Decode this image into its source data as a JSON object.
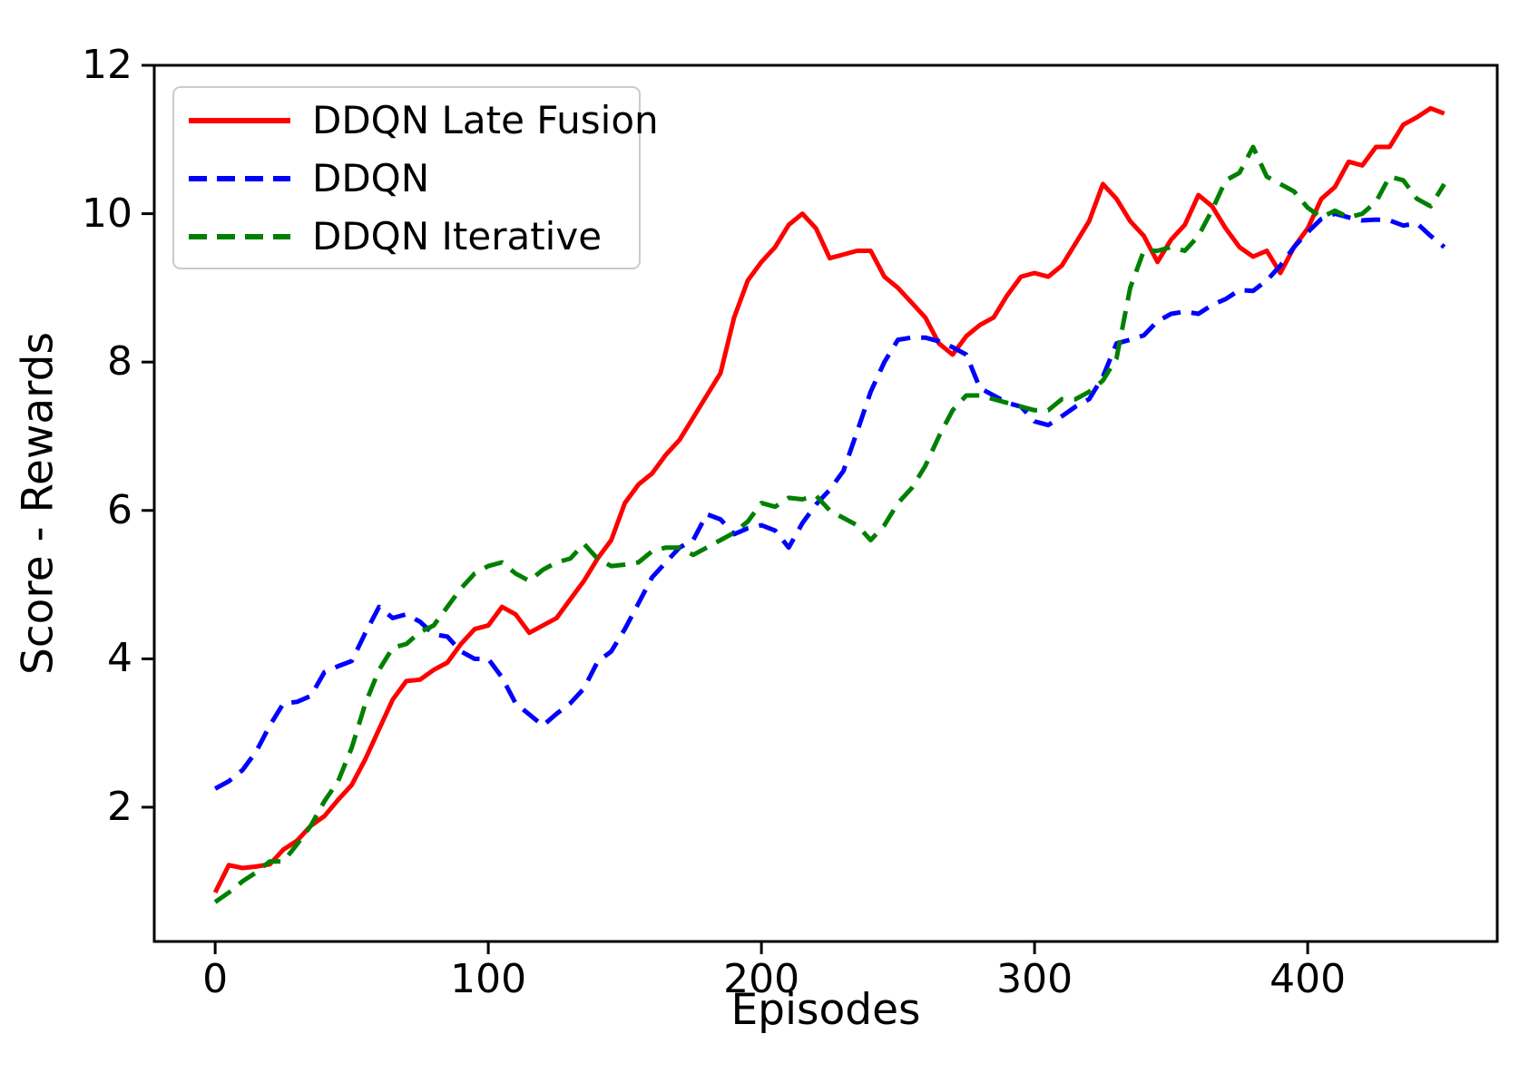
{
  "figure": {
    "background": "#ffffff"
  },
  "axes": {
    "xlabel": "Episodes",
    "ylabel": "Score - Rewards",
    "x_ticks": [
      0,
      100,
      200,
      300,
      400
    ],
    "y_ticks": [
      2,
      4,
      6,
      8,
      10,
      12
    ],
    "spine_color": "#000000"
  },
  "legend": {
    "position": "upper left",
    "items": [
      {
        "label": "DDQN Late Fusion",
        "color": "#ff0000",
        "style": "solid"
      },
      {
        "label": "DDQN",
        "color": "#0000ff",
        "style": "dashed"
      },
      {
        "label": "DDQN Iterative",
        "color": "#008000",
        "style": "dashed"
      }
    ]
  },
  "chart_data": {
    "type": "line",
    "title": "",
    "xlabel": "Episodes",
    "ylabel": "Score - Rewards",
    "grid": false,
    "legend_position": "upper left",
    "xlim": [
      -22.3,
      469.4
    ],
    "ylim": [
      0.19,
      12.0
    ],
    "x": [
      0,
      5,
      10,
      15,
      20,
      25,
      30,
      35,
      40,
      45,
      50,
      55,
      60,
      65,
      70,
      75,
      80,
      85,
      90,
      95,
      100,
      105,
      110,
      115,
      120,
      125,
      130,
      135,
      140,
      145,
      150,
      155,
      160,
      165,
      170,
      175,
      180,
      185,
      190,
      195,
      200,
      205,
      210,
      215,
      220,
      225,
      230,
      235,
      240,
      245,
      250,
      255,
      260,
      265,
      270,
      275,
      280,
      285,
      290,
      295,
      300,
      305,
      310,
      315,
      320,
      325,
      330,
      335,
      340,
      345,
      350,
      355,
      360,
      365,
      370,
      375,
      380,
      385,
      390,
      395,
      400,
      405,
      410,
      415,
      420,
      425,
      430,
      435,
      440,
      445,
      450
    ],
    "series": [
      {
        "name": "DDQN Late Fusion",
        "color": "#ff0000",
        "style": "solid",
        "values": [
          0.85,
          1.22,
          1.18,
          1.2,
          1.23,
          1.43,
          1.55,
          1.75,
          1.88,
          2.1,
          2.3,
          2.65,
          3.05,
          3.45,
          3.7,
          3.72,
          3.85,
          3.95,
          4.2,
          4.4,
          4.45,
          4.7,
          4.6,
          4.35,
          4.45,
          4.55,
          4.8,
          5.05,
          5.35,
          5.6,
          6.1,
          6.35,
          6.5,
          6.75,
          6.95,
          7.25,
          7.55,
          7.85,
          8.6,
          9.1,
          9.35,
          9.55,
          9.85,
          10.0,
          9.8,
          9.4,
          9.45,
          9.5,
          9.5,
          9.15,
          9.0,
          8.8,
          8.6,
          8.25,
          8.1,
          8.35,
          8.5,
          8.6,
          8.9,
          9.15,
          9.2,
          9.15,
          9.3,
          9.6,
          9.9,
          10.4,
          10.2,
          9.9,
          9.7,
          9.35,
          9.65,
          9.85,
          10.25,
          10.1,
          9.8,
          9.55,
          9.42,
          9.5,
          9.2,
          9.55,
          9.8,
          10.2,
          10.36,
          10.7,
          10.65,
          10.9,
          10.9,
          11.2,
          11.3,
          11.42,
          11.35
        ]
      },
      {
        "name": "DDQN",
        "color": "#0000ff",
        "style": "dashed",
        "values": [
          2.25,
          2.35,
          2.5,
          2.75,
          3.1,
          3.4,
          3.42,
          3.5,
          3.82,
          3.9,
          3.97,
          4.35,
          4.7,
          4.55,
          4.6,
          4.5,
          4.33,
          4.3,
          4.1,
          4.0,
          4.0,
          3.75,
          3.4,
          3.25,
          3.1,
          3.26,
          3.4,
          3.6,
          3.96,
          4.1,
          4.4,
          4.75,
          5.1,
          5.3,
          5.5,
          5.6,
          5.95,
          5.88,
          5.68,
          5.76,
          5.8,
          5.73,
          5.5,
          5.83,
          6.08,
          6.28,
          6.53,
          7.06,
          7.6,
          8.0,
          8.3,
          8.33,
          8.33,
          8.28,
          8.2,
          8.1,
          7.65,
          7.55,
          7.45,
          7.4,
          7.2,
          7.15,
          7.27,
          7.4,
          7.5,
          7.8,
          8.25,
          8.3,
          8.36,
          8.55,
          8.65,
          8.68,
          8.65,
          8.77,
          8.85,
          8.97,
          8.96,
          9.1,
          9.3,
          9.55,
          9.75,
          9.93,
          10.0,
          9.95,
          9.91,
          9.92,
          9.91,
          9.84,
          9.87,
          9.7,
          9.55
        ]
      },
      {
        "name": "DDQN Iterative",
        "color": "#008000",
        "style": "dashed",
        "values": [
          0.72,
          0.85,
          1.0,
          1.12,
          1.27,
          1.27,
          1.5,
          1.75,
          2.08,
          2.35,
          2.8,
          3.4,
          3.85,
          4.15,
          4.2,
          4.36,
          4.45,
          4.7,
          4.95,
          5.15,
          5.25,
          5.3,
          5.15,
          5.05,
          5.2,
          5.3,
          5.35,
          5.55,
          5.35,
          5.25,
          5.27,
          5.3,
          5.45,
          5.5,
          5.5,
          5.4,
          5.5,
          5.6,
          5.7,
          5.85,
          6.1,
          6.05,
          6.17,
          6.15,
          6.2,
          6.0,
          5.9,
          5.8,
          5.6,
          5.8,
          6.1,
          6.3,
          6.6,
          7.0,
          7.35,
          7.55,
          7.55,
          7.5,
          7.45,
          7.4,
          7.35,
          7.35,
          7.5,
          7.5,
          7.6,
          7.75,
          8.05,
          9.0,
          9.5,
          9.5,
          9.55,
          9.5,
          9.7,
          10.05,
          10.45,
          10.55,
          10.9,
          10.5,
          10.4,
          10.3,
          10.08,
          9.95,
          10.04,
          9.95,
          10.0,
          10.16,
          10.5,
          10.45,
          10.2,
          10.1,
          10.4
        ]
      }
    ]
  }
}
